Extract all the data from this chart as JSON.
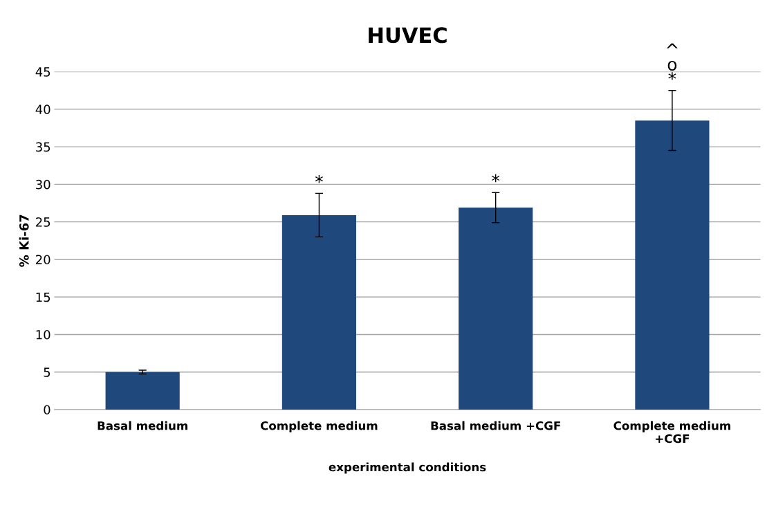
{
  "chart_data": {
    "type": "bar",
    "title": "HUVEC",
    "xlabel": "experimental conditions",
    "ylabel": "% Ki-67",
    "categories": [
      "Basal medium",
      "Complete medium",
      "Basal medium +CGF",
      "Complete medium\n+CGF"
    ],
    "values": [
      5.0,
      25.9,
      26.9,
      38.5
    ],
    "errors": [
      0.25,
      2.9,
      2.0,
      4.0
    ],
    "color": "#1f497d",
    "ylim": [
      0,
      45
    ],
    "yticks": [
      0,
      5,
      10,
      15,
      20,
      25,
      30,
      35,
      40,
      45
    ],
    "grid": "y",
    "annotations": [
      {
        "text": "*",
        "x": "Complete medium",
        "y": 28.8
      },
      {
        "text": "*",
        "x": "Basal medium +CGF",
        "y": 28.9
      },
      {
        "text": "*",
        "x": "Complete medium\n+CGF",
        "y": 42.5
      },
      {
        "text": "o",
        "x": "Complete medium\n+CGF",
        "y": 42.5
      },
      {
        "text": "^",
        "x": "Complete medium\n+CGF",
        "y": 42.5
      }
    ]
  }
}
